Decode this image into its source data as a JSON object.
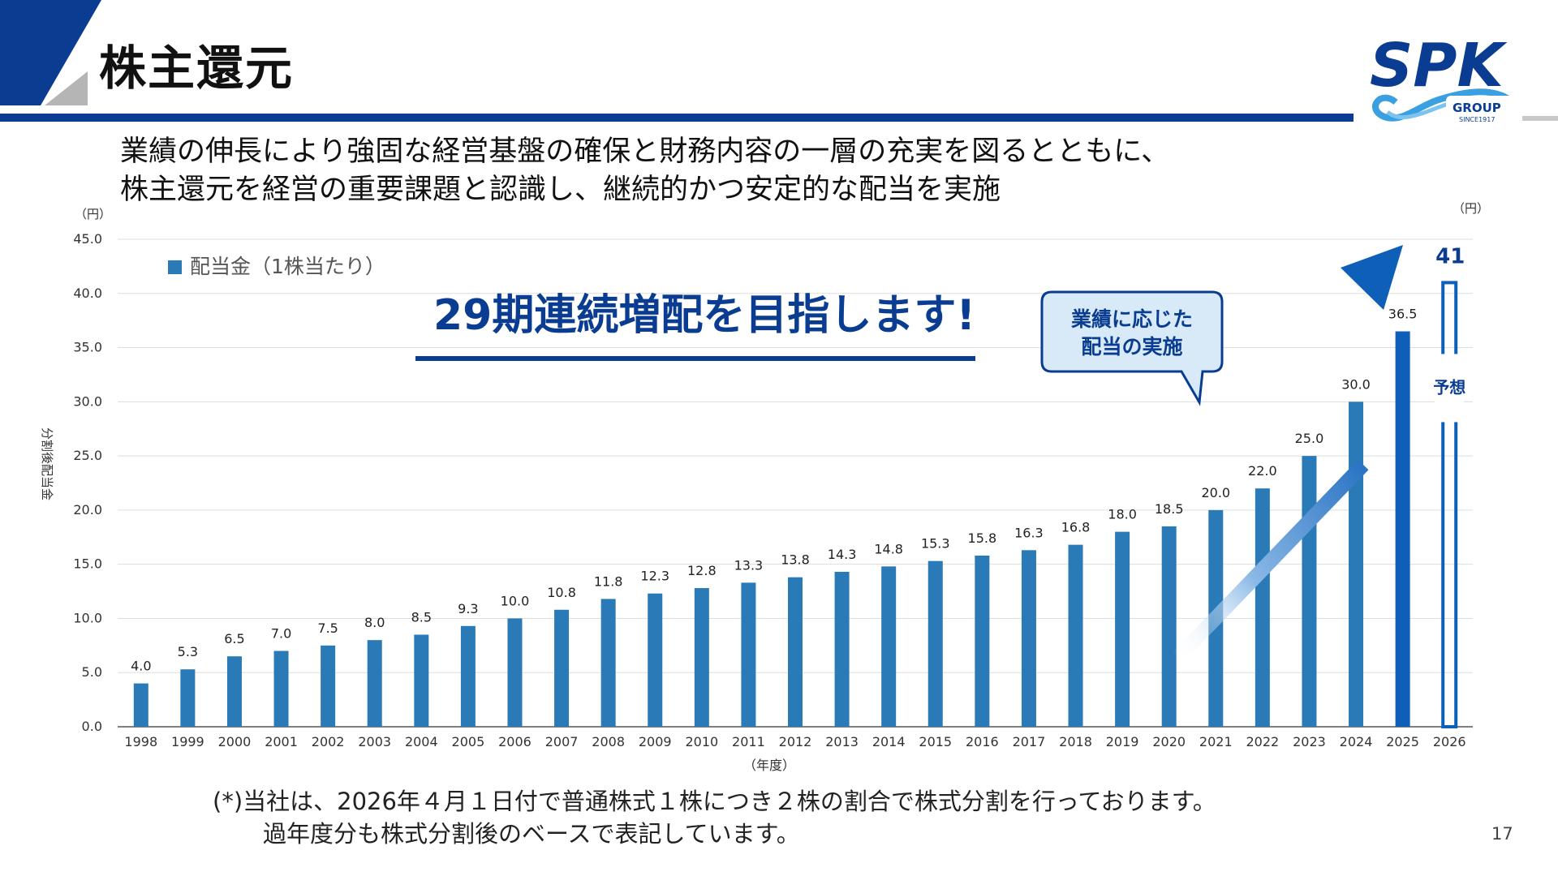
{
  "slide": {
    "title": "株主還元",
    "subtitle_lines": [
      "業績の伸長により強固な経営基盤の確保と財務内容の一層の充実を図るとともに、",
      "株主還元を経営の重要課題と認識し、継続的かつ安定的な配当を実施"
    ],
    "note_lines": [
      "(*)当社は、2026年４月１日付で普通株式１株につき２株の割合で株式分割を行っております。",
      "過年度分も株式分割後のベースで表記しています。"
    ],
    "page_number": "17",
    "logo": {
      "main": "SPK",
      "sub": "GROUP",
      "since": "SINCE1917"
    },
    "colors": {
      "brand_blue": "#0a3d91",
      "bar_blue": "#2a7ab8",
      "bar_highlight": "#0d5fb8",
      "gray": "#b5b5b5"
    }
  },
  "chart_data": {
    "type": "bar",
    "ylabel": "分割後配当金",
    "y_unit": "（円）",
    "y_unit_right": "（円）",
    "xlabel": "（年度）",
    "ylim": [
      0,
      45
    ],
    "yticks": [
      "0.0",
      "5.0",
      "10.0",
      "15.0",
      "20.0",
      "25.0",
      "30.0",
      "35.0",
      "40.0",
      "45.0"
    ],
    "grid": true,
    "legend": {
      "label": "配当金（1株当たり）",
      "position": "top-left"
    },
    "categories": [
      "1998",
      "1999",
      "2000",
      "2001",
      "2002",
      "2003",
      "2004",
      "2005",
      "2006",
      "2007",
      "2008",
      "2009",
      "2010",
      "2011",
      "2012",
      "2013",
      "2014",
      "2015",
      "2016",
      "2017",
      "2018",
      "2019",
      "2020",
      "2021",
      "2022",
      "2023",
      "2024",
      "2025",
      "2026"
    ],
    "series": [
      {
        "name": "配当金（1株当たり）",
        "values": [
          4.0,
          5.3,
          6.5,
          7.0,
          7.5,
          8.0,
          8.5,
          9.3,
          10.0,
          10.8,
          11.8,
          12.3,
          12.8,
          13.3,
          13.8,
          14.3,
          14.8,
          15.3,
          15.8,
          16.3,
          16.8,
          18.0,
          18.5,
          20.0,
          22.0,
          25.0,
          30.0,
          36.5,
          41
        ],
        "labels": [
          "4.0",
          "5.3",
          "6.5",
          "7.0",
          "7.5",
          "8.0",
          "8.5",
          "9.3",
          "10.0",
          "10.8",
          "11.8",
          "12.3",
          "12.8",
          "13.3",
          "13.8",
          "14.3",
          "14.8",
          "15.3",
          "15.8",
          "16.3",
          "16.8",
          "18.0",
          "18.5",
          "20.0",
          "22.0",
          "25.0",
          "30.0",
          "36.5",
          "41"
        ]
      }
    ],
    "forecast": {
      "category": "2026",
      "value_label": "41",
      "label": "予想"
    },
    "headline": "29期連続増配を目指します!",
    "callout": [
      "業績に応じた",
      "配当の実施"
    ]
  }
}
